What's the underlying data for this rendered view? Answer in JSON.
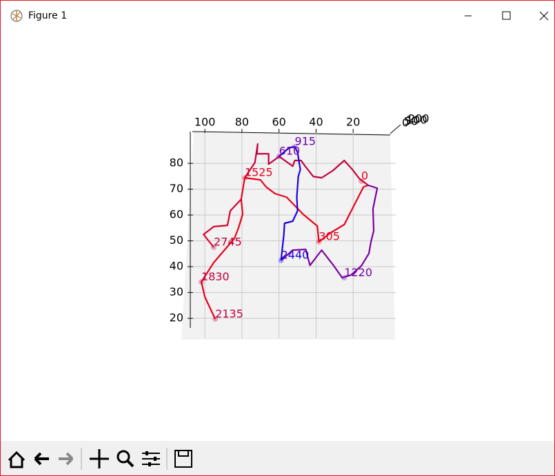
{
  "window": {
    "title": "Figure 1"
  },
  "chart_data": {
    "type": "line3d",
    "xlim": [
      106,
      0
    ],
    "ylim": [
      15.5,
      92.3
    ],
    "xticks": [
      100,
      80,
      60,
      40,
      20
    ],
    "yticks": [
      20,
      30,
      40,
      50,
      60,
      70,
      80
    ],
    "zticks": [
      0,
      50,
      100,
      200
    ],
    "grid": true,
    "lines": [
      {
        "color": "#e8001a",
        "x": [
          94.4,
          100,
          101.9,
          95.2,
          84.1,
          81.9,
          79.6,
          80.4,
          78.5,
          70,
          67,
          62.2,
          55.9,
          47,
          39.3,
          38.5,
          32.2,
          24.8,
          14.4,
          11.9
        ],
        "y": [
          19.7,
          28.3,
          34.1,
          41.6,
          50.9,
          54.9,
          60.3,
          66.1,
          74.4,
          73.6,
          70.9,
          68.3,
          66.9,
          60.3,
          55.7,
          49.6,
          53.1,
          56.3,
          70.9,
          71.5
        ]
      },
      {
        "color": "#c0003c",
        "x": [
          78.5,
          73,
          71.5,
          71.9,
          65.6,
          65.6,
          61.9,
          60,
          52.6,
          51.5,
          48.1,
          45.9,
          41.5,
          37,
          31.1,
          24.8,
          20.4,
          16.7,
          11.9
        ],
        "y": [
          74.4,
          80.3,
          87.5,
          83.7,
          83.7,
          79.7,
          81.6,
          82.7,
          78.9,
          81.1,
          81.1,
          78.9,
          74.9,
          74.4,
          77.1,
          81.1,
          77.6,
          74.1,
          71.5
        ]
      },
      {
        "color": "#7a00a0",
        "x": [
          11.9,
          7,
          9.3,
          8.9,
          10.4,
          11.5,
          15.6,
          21.1,
          25.9,
          30.4,
          37,
          43.3,
          45.6,
          52.6,
          58.9
        ],
        "y": [
          71.5,
          70.4,
          62.4,
          53.9,
          49.6,
          45.1,
          40.3,
          36.8,
          35.7,
          40.3,
          46.4,
          40.5,
          46.7,
          46.4,
          42.4
        ]
      },
      {
        "color": "#1a00e0",
        "x": [
          58.9,
          57.4,
          57,
          52.6,
          50,
          50.4,
          49.6,
          48.5,
          50,
          51.5,
          54.4,
          60
        ],
        "y": [
          42.4,
          52.3,
          56.8,
          57.6,
          61.6,
          66.9,
          74.9,
          77.6,
          84.3,
          86.4,
          86.1,
          82.7
        ]
      },
      {
        "color": "#d8002a",
        "x": [
          95.2,
          100.7,
          95.2,
          87.8,
          86.3,
          80.4
        ],
        "y": [
          47.5,
          52.5,
          55.5,
          56,
          61.6,
          66.1
        ]
      }
    ],
    "annotations": [
      {
        "text": 0,
        "x": 15.6,
        "y": 73.1,
        "color": "#e8001a"
      },
      {
        "text": 305,
        "x": 38.5,
        "y": 49.6,
        "color": "#e8001a"
      },
      {
        "text": 610,
        "x": 60,
        "y": 82.7,
        "color": "#8000a0"
      },
      {
        "text": 915,
        "x": 51.5,
        "y": 86.4,
        "color": "#6a00b0"
      },
      {
        "text": 1220,
        "x": 24.8,
        "y": 35.7,
        "color": "#7000a8"
      },
      {
        "text": 1525,
        "x": 78.5,
        "y": 74.4,
        "color": "#e8001a"
      },
      {
        "text": 1830,
        "x": 101.9,
        "y": 34.1,
        "color": "#c0003c"
      },
      {
        "text": 2135,
        "x": 94.4,
        "y": 19.7,
        "color": "#c0003c"
      },
      {
        "text": 2440,
        "x": 58.9,
        "y": 42.4,
        "color": "#1a00e0"
      },
      {
        "text": 2745,
        "x": 95.2,
        "y": 47.5,
        "color": "#c0003c"
      }
    ]
  }
}
